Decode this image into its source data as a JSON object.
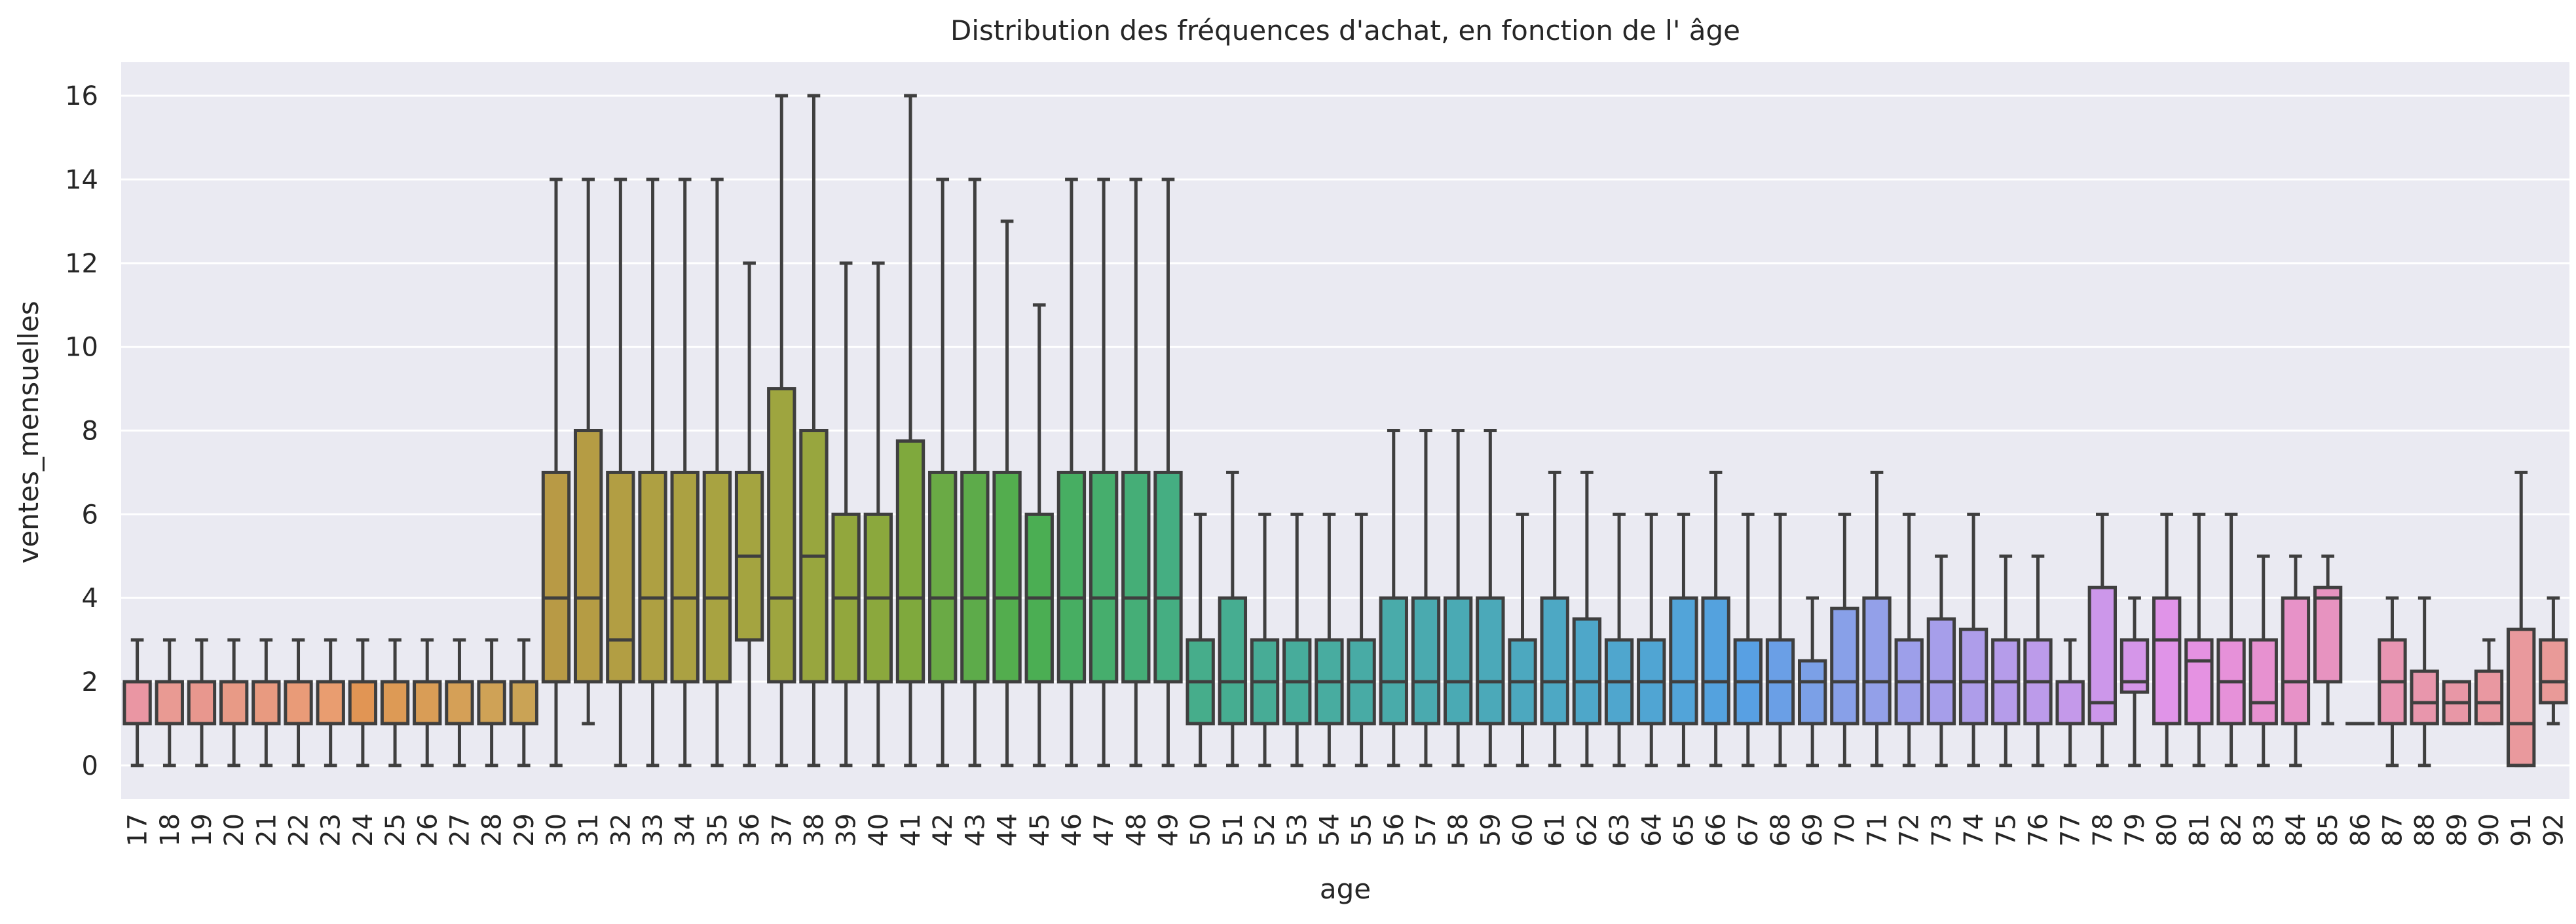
{
  "chart_data": {
    "type": "boxplot",
    "title": "Distribution des fréquences d'achat, en fonction de l' âge",
    "xlabel": "age",
    "ylabel": "ventes_mensuelles",
    "ylim": [
      -0.8,
      16.8
    ],
    "yticks": [
      0,
      2,
      4,
      6,
      8,
      10,
      12,
      14,
      16
    ],
    "grid": true,
    "legend": "none",
    "boxes": [
      {
        "age": "17",
        "whislo": 0,
        "q1": 1,
        "med": 2,
        "q3": 2,
        "whishi": 3,
        "color": "#ea96a3"
      },
      {
        "age": "18",
        "whislo": 0,
        "q1": 1,
        "med": 2,
        "q3": 2,
        "whishi": 3,
        "color": "#e99a93"
      },
      {
        "age": "19",
        "whislo": 0,
        "q1": 1,
        "med": 2,
        "q3": 2,
        "whishi": 3,
        "color": "#e8978e"
      },
      {
        "age": "20",
        "whislo": 0,
        "q1": 1,
        "med": 2,
        "q3": 2,
        "whishi": 3,
        "color": "#e89a86"
      },
      {
        "age": "21",
        "whislo": 0,
        "q1": 1,
        "med": 2,
        "q3": 2,
        "whishi": 3,
        "color": "#e89a80"
      },
      {
        "age": "22",
        "whislo": 0,
        "q1": 1,
        "med": 2,
        "q3": 2,
        "whishi": 3,
        "color": "#e99b78"
      },
      {
        "age": "23",
        "whislo": 0,
        "q1": 1,
        "med": 2,
        "q3": 2,
        "whishi": 3,
        "color": "#e99d70"
      },
      {
        "age": "24",
        "whislo": 0,
        "q1": 1,
        "med": 2,
        "q3": 2,
        "whishi": 3,
        "color": "#e19554"
      },
      {
        "age": "25",
        "whislo": 0,
        "q1": 1,
        "med": 2,
        "q3": 2,
        "whishi": 3,
        "color": "#dd9a55"
      },
      {
        "age": "26",
        "whislo": 0,
        "q1": 1,
        "med": 2,
        "q3": 2,
        "whishi": 3,
        "color": "#d99d56"
      },
      {
        "age": "27",
        "whislo": 0,
        "q1": 1,
        "med": 2,
        "q3": 2,
        "whishi": 3,
        "color": "#d5a057"
      },
      {
        "age": "28",
        "whislo": 0,
        "q1": 1,
        "med": 2,
        "q3": 2,
        "whishi": 3,
        "color": "#cfa256"
      },
      {
        "age": "29",
        "whislo": 0,
        "q1": 1,
        "med": 2,
        "q3": 2,
        "whishi": 3,
        "color": "#caa355"
      },
      {
        "age": "30",
        "whislo": 0,
        "q1": 2,
        "med": 4,
        "q3": 7,
        "whishi": 14,
        "color": "#b89a45"
      },
      {
        "age": "31",
        "whislo": 1,
        "q1": 2,
        "med": 4,
        "q3": 8,
        "whishi": 14,
        "color": "#b59c44"
      },
      {
        "age": "32",
        "whislo": 0,
        "q1": 2,
        "med": 3,
        "q3": 7,
        "whishi": 14,
        "color": "#b29e43"
      },
      {
        "age": "33",
        "whislo": 0,
        "q1": 2,
        "med": 4,
        "q3": 7,
        "whishi": 14,
        "color": "#aea042"
      },
      {
        "age": "34",
        "whislo": 0,
        "q1": 2,
        "med": 4,
        "q3": 7,
        "whishi": 14,
        "color": "#aba142"
      },
      {
        "age": "35",
        "whislo": 0,
        "q1": 2,
        "med": 4,
        "q3": 7,
        "whishi": 14,
        "color": "#a8a341"
      },
      {
        "age": "36",
        "whislo": 0,
        "q1": 3,
        "med": 5,
        "q3": 7,
        "whishi": 12,
        "color": "#a4a440"
      },
      {
        "age": "37",
        "whislo": 0,
        "q1": 2,
        "med": 4,
        "q3": 9,
        "whishi": 16,
        "color": "#9ea53f"
      },
      {
        "age": "38",
        "whislo": 0,
        "q1": 2,
        "med": 5,
        "q3": 8,
        "whishi": 16,
        "color": "#98a63e"
      },
      {
        "age": "39",
        "whislo": 0,
        "q1": 2,
        "med": 4,
        "q3": 6,
        "whishi": 12,
        "color": "#92a73d"
      },
      {
        "age": "40",
        "whislo": 0,
        "q1": 2,
        "med": 4,
        "q3": 6,
        "whishi": 12,
        "color": "#8ba83d"
      },
      {
        "age": "41",
        "whislo": 0,
        "q1": 2,
        "med": 4,
        "q3": 7.75,
        "whishi": 16,
        "color": "#7fa93d"
      },
      {
        "age": "42",
        "whislo": 0,
        "q1": 2,
        "med": 4,
        "q3": 7,
        "whishi": 14,
        "color": "#6aaa45"
      },
      {
        "age": "43",
        "whislo": 0,
        "q1": 2,
        "med": 4,
        "q3": 7,
        "whishi": 14,
        "color": "#5dab4a"
      },
      {
        "age": "44",
        "whislo": 0,
        "q1": 2,
        "med": 4,
        "q3": 7,
        "whishi": 13,
        "color": "#53ad4e"
      },
      {
        "age": "45",
        "whislo": 0,
        "q1": 2,
        "med": 4,
        "q3": 6,
        "whishi": 11,
        "color": "#4bae53"
      },
      {
        "age": "46",
        "whislo": 0,
        "q1": 2,
        "med": 4,
        "q3": 7,
        "whishi": 14,
        "color": "#47ae62"
      },
      {
        "age": "47",
        "whislo": 0,
        "q1": 2,
        "med": 4,
        "q3": 7,
        "whishi": 14,
        "color": "#46ae6d"
      },
      {
        "age": "48",
        "whislo": 0,
        "q1": 2,
        "med": 4,
        "q3": 7,
        "whishi": 14,
        "color": "#45ae77"
      },
      {
        "age": "49",
        "whislo": 0,
        "q1": 2,
        "med": 4,
        "q3": 7,
        "whishi": 14,
        "color": "#45ae82"
      },
      {
        "age": "50",
        "whislo": 0,
        "q1": 1,
        "med": 2,
        "q3": 3,
        "whishi": 6,
        "color": "#46ad8b"
      },
      {
        "age": "51",
        "whislo": 0,
        "q1": 1,
        "med": 2,
        "q3": 4,
        "whishi": 7,
        "color": "#46ad91"
      },
      {
        "age": "52",
        "whislo": 0,
        "q1": 1,
        "med": 2,
        "q3": 3,
        "whishi": 6,
        "color": "#47ac96"
      },
      {
        "age": "53",
        "whislo": 0,
        "q1": 1,
        "med": 2,
        "q3": 3,
        "whishi": 6,
        "color": "#47ac9b"
      },
      {
        "age": "54",
        "whislo": 0,
        "q1": 1,
        "med": 2,
        "q3": 3,
        "whishi": 6,
        "color": "#48aca0"
      },
      {
        "age": "55",
        "whislo": 0,
        "q1": 1,
        "med": 2,
        "q3": 3,
        "whishi": 6,
        "color": "#48aba5"
      },
      {
        "age": "56",
        "whislo": 0,
        "q1": 1,
        "med": 2,
        "q3": 4,
        "whishi": 8,
        "color": "#49abaa"
      },
      {
        "age": "57",
        "whislo": 0,
        "q1": 1,
        "med": 2,
        "q3": 4,
        "whishi": 8,
        "color": "#4aaaaf"
      },
      {
        "age": "58",
        "whislo": 0,
        "q1": 1,
        "med": 2,
        "q3": 4,
        "whishi": 8,
        "color": "#4aaab4"
      },
      {
        "age": "59",
        "whislo": 0,
        "q1": 1,
        "med": 2,
        "q3": 4,
        "whishi": 8,
        "color": "#4ba9b9"
      },
      {
        "age": "60",
        "whislo": 0,
        "q1": 1,
        "med": 2,
        "q3": 3,
        "whishi": 6,
        "color": "#4ca8bf"
      },
      {
        "age": "61",
        "whislo": 0,
        "q1": 1,
        "med": 2,
        "q3": 4,
        "whishi": 7,
        "color": "#4da8c4"
      },
      {
        "age": "62",
        "whislo": 0,
        "q1": 1,
        "med": 2,
        "q3": 3.5,
        "whishi": 7,
        "color": "#4ea7c9"
      },
      {
        "age": "63",
        "whislo": 0,
        "q1": 1,
        "med": 2,
        "q3": 3,
        "whishi": 6,
        "color": "#4fa6ce"
      },
      {
        "age": "64",
        "whislo": 0,
        "q1": 1,
        "med": 2,
        "q3": 3,
        "whishi": 6,
        "color": "#50a5d3"
      },
      {
        "age": "65",
        "whislo": 0,
        "q1": 1,
        "med": 2,
        "q3": 4,
        "whishi": 6,
        "color": "#52a4d9"
      },
      {
        "age": "66",
        "whislo": 0,
        "q1": 1,
        "med": 2,
        "q3": 4,
        "whishi": 7,
        "color": "#54a2de"
      },
      {
        "age": "67",
        "whislo": 0,
        "q1": 1,
        "med": 2,
        "q3": 3,
        "whishi": 6,
        "color": "#58a0e3"
      },
      {
        "age": "68",
        "whislo": 0,
        "q1": 1,
        "med": 2,
        "q3": 3,
        "whishi": 6,
        "color": "#6a9fe6"
      },
      {
        "age": "69",
        "whislo": 0,
        "q1": 1,
        "med": 2,
        "q3": 2.5,
        "whishi": 4,
        "color": "#7ba0e7"
      },
      {
        "age": "70",
        "whislo": 0,
        "q1": 1,
        "med": 2,
        "q3": 3.75,
        "whishi": 6,
        "color": "#88a0e8"
      },
      {
        "age": "71",
        "whislo": 0,
        "q1": 1,
        "med": 2,
        "q3": 4,
        "whishi": 7,
        "color": "#93a0e9"
      },
      {
        "age": "72",
        "whislo": 0,
        "q1": 1,
        "med": 2,
        "q3": 3,
        "whishi": 6,
        "color": "#9d9fea"
      },
      {
        "age": "73",
        "whislo": 0,
        "q1": 1,
        "med": 2,
        "q3": 3.5,
        "whishi": 5,
        "color": "#a69eea"
      },
      {
        "age": "74",
        "whislo": 0,
        "q1": 1,
        "med": 2,
        "q3": 3.25,
        "whishi": 6,
        "color": "#ae9dea"
      },
      {
        "age": "75",
        "whislo": 0,
        "q1": 1,
        "med": 2,
        "q3": 3,
        "whishi": 5,
        "color": "#b59cea"
      },
      {
        "age": "76",
        "whislo": 0,
        "q1": 1,
        "med": 2,
        "q3": 3,
        "whishi": 5,
        "color": "#bc9bea"
      },
      {
        "age": "77",
        "whislo": 0,
        "q1": 1,
        "med": 2,
        "q3": 2,
        "whishi": 3,
        "color": "#c499ea"
      },
      {
        "age": "78",
        "whislo": 0,
        "q1": 1,
        "med": 1.5,
        "q3": 4.25,
        "whishi": 6,
        "color": "#cc97ea"
      },
      {
        "age": "79",
        "whislo": 0,
        "q1": 1.75,
        "med": 2,
        "q3": 3,
        "whishi": 4,
        "color": "#d596e9"
      },
      {
        "age": "80",
        "whislo": 0,
        "q1": 1,
        "med": 3,
        "q3": 4,
        "whishi": 6,
        "color": "#e094e8"
      },
      {
        "age": "81",
        "whislo": 0,
        "q1": 1,
        "med": 2.5,
        "q3": 3,
        "whishi": 6,
        "color": "#e592e2"
      },
      {
        "age": "82",
        "whislo": 0,
        "q1": 1,
        "med": 2,
        "q3": 3,
        "whishi": 6,
        "color": "#e691d9"
      },
      {
        "age": "83",
        "whislo": 0,
        "q1": 1,
        "med": 1.5,
        "q3": 3,
        "whishi": 5,
        "color": "#e791d0"
      },
      {
        "age": "84",
        "whislo": 0,
        "q1": 1,
        "med": 2,
        "q3": 4,
        "whishi": 5,
        "color": "#e792c8"
      },
      {
        "age": "85",
        "whislo": 1,
        "q1": 2,
        "med": 4,
        "q3": 4.25,
        "whishi": 5,
        "color": "#e793c0"
      },
      {
        "age": "86",
        "whislo": 1,
        "q1": 1,
        "med": 1,
        "q3": 1,
        "whishi": 1,
        "color": "#e894b9"
      },
      {
        "age": "87",
        "whislo": 0,
        "q1": 1,
        "med": 2,
        "q3": 3,
        "whishi": 4,
        "color": "#e895b2"
      },
      {
        "age": "88",
        "whislo": 0,
        "q1": 1,
        "med": 1.5,
        "q3": 2.25,
        "whishi": 4,
        "color": "#e896ac"
      },
      {
        "age": "89",
        "whislo": 1,
        "q1": 1,
        "med": 1.5,
        "q3": 2,
        "whishi": 2,
        "color": "#e897a6"
      },
      {
        "age": "90",
        "whislo": 1,
        "q1": 1,
        "med": 1.5,
        "q3": 2.25,
        "whishi": 3,
        "color": "#e998a1"
      },
      {
        "age": "91",
        "whislo": 0,
        "q1": 0,
        "med": 1,
        "q3": 3.25,
        "whishi": 7,
        "color": "#e9999d"
      },
      {
        "age": "92",
        "whislo": 1,
        "q1": 1.5,
        "med": 2,
        "q3": 3,
        "whishi": 4,
        "color": "#e99a98"
      }
    ]
  }
}
